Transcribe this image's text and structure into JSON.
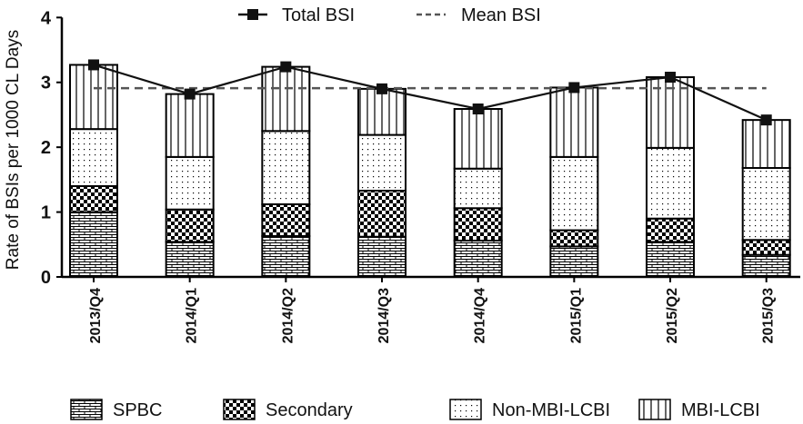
{
  "chart_data": {
    "type": "bar",
    "stacked": true,
    "title": "",
    "xlabel": "",
    "ylabel": "Rate of BSIs per 1000  CL Days",
    "ylim": [
      0,
      4
    ],
    "yticks": [
      0,
      1,
      2,
      3,
      4
    ],
    "categories": [
      "2013/Q4",
      "2014/Q1",
      "2014/Q2",
      "2014/Q3",
      "2014/Q4",
      "2015/Q1",
      "2015/Q2",
      "2015/Q3"
    ],
    "series": [
      {
        "name": "SPBC",
        "pattern": "brick",
        "values": [
          1.0,
          0.54,
          0.63,
          0.62,
          0.56,
          0.47,
          0.54,
          0.34
        ]
      },
      {
        "name": "Secondary",
        "pattern": "checker",
        "values": [
          0.4,
          0.5,
          0.49,
          0.71,
          0.5,
          0.25,
          0.36,
          0.23
        ]
      },
      {
        "name": "Non-MBI-LCBI",
        "pattern": "dots",
        "values": [
          0.88,
          0.81,
          1.13,
          0.86,
          0.61,
          1.13,
          1.09,
          1.11
        ]
      },
      {
        "name": "MBI-LCBI",
        "pattern": "vlines",
        "values": [
          0.99,
          0.97,
          0.99,
          0.71,
          0.92,
          1.07,
          1.09,
          0.74
        ]
      }
    ],
    "lines": [
      {
        "name": "Total BSI",
        "style": "solid-square-markers",
        "values": [
          3.27,
          2.82,
          3.24,
          2.9,
          2.59,
          2.92,
          3.08,
          2.42
        ]
      },
      {
        "name": "Mean BSI",
        "style": "dashed",
        "value": 2.91
      }
    ],
    "legend": {
      "top": [
        "Total BSI",
        "Mean BSI"
      ],
      "bottom": [
        "SPBC",
        "Secondary",
        "Non-MBI-LCBI",
        "MBI-LCBI"
      ]
    },
    "grid": false
  }
}
